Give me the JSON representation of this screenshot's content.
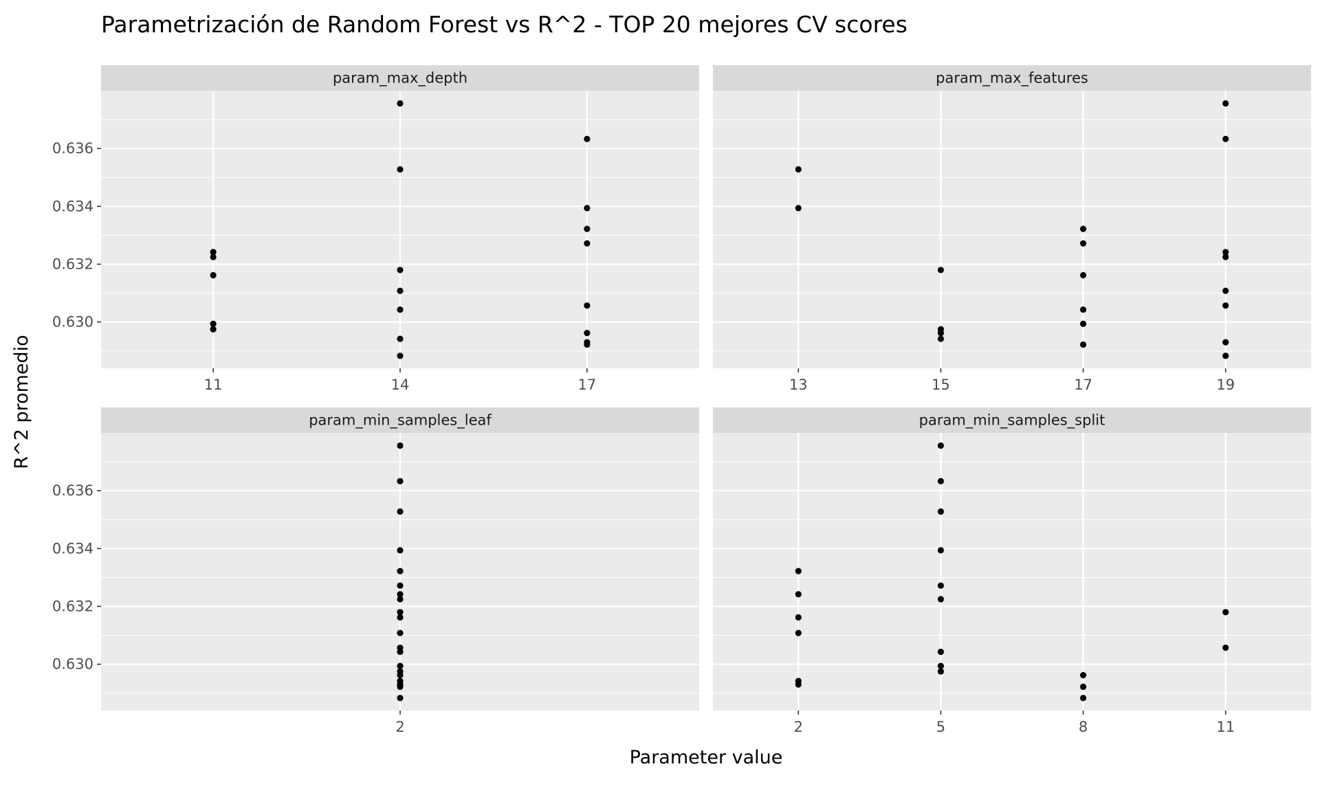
{
  "chart_data": {
    "type": "scatter",
    "title": "Parametrización de Random Forest vs R^2 - TOP 20 mejores CV scores",
    "xlabel": "Parameter value",
    "ylabel": "R^2 promedio",
    "ylim": [
      0.6284,
      0.638
    ],
    "y_ticks": [
      "0.630",
      "0.632",
      "0.634",
      "0.636"
    ],
    "grid": true,
    "point_color": "#000000",
    "panels": [
      {
        "label": "param_max_depth",
        "x_ticks": [
          "11",
          "14",
          "17"
        ],
        "points": [
          {
            "x": "11",
            "y": 0.63242
          },
          {
            "x": "11",
            "y": 0.63225
          },
          {
            "x": "11",
            "y": 0.63162
          },
          {
            "x": "11",
            "y": 0.62994
          },
          {
            "x": "11",
            "y": 0.62975
          },
          {
            "x": "14",
            "y": 0.63756
          },
          {
            "x": "14",
            "y": 0.63528
          },
          {
            "x": "14",
            "y": 0.6318
          },
          {
            "x": "14",
            "y": 0.63108
          },
          {
            "x": "14",
            "y": 0.63043
          },
          {
            "x": "14",
            "y": 0.62942
          },
          {
            "x": "14",
            "y": 0.62883
          },
          {
            "x": "17",
            "y": 0.63633
          },
          {
            "x": "17",
            "y": 0.63394
          },
          {
            "x": "17",
            "y": 0.63322
          },
          {
            "x": "17",
            "y": 0.63272
          },
          {
            "x": "17",
            "y": 0.63057
          },
          {
            "x": "17",
            "y": 0.62962
          },
          {
            "x": "17",
            "y": 0.6293
          },
          {
            "x": "17",
            "y": 0.62922
          }
        ]
      },
      {
        "label": "param_max_features",
        "x_ticks": [
          "13",
          "15",
          "17",
          "19"
        ],
        "points": [
          {
            "x": "13",
            "y": 0.63528
          },
          {
            "x": "13",
            "y": 0.63394
          },
          {
            "x": "15",
            "y": 0.6318
          },
          {
            "x": "15",
            "y": 0.62975
          },
          {
            "x": "15",
            "y": 0.62962
          },
          {
            "x": "15",
            "y": 0.62942
          },
          {
            "x": "17",
            "y": 0.63322
          },
          {
            "x": "17",
            "y": 0.63272
          },
          {
            "x": "17",
            "y": 0.63162
          },
          {
            "x": "17",
            "y": 0.63043
          },
          {
            "x": "17",
            "y": 0.62994
          },
          {
            "x": "17",
            "y": 0.62922
          },
          {
            "x": "19",
            "y": 0.63756
          },
          {
            "x": "19",
            "y": 0.63633
          },
          {
            "x": "19",
            "y": 0.63242
          },
          {
            "x": "19",
            "y": 0.63225
          },
          {
            "x": "19",
            "y": 0.63108
          },
          {
            "x": "19",
            "y": 0.63057
          },
          {
            "x": "19",
            "y": 0.6293
          },
          {
            "x": "19",
            "y": 0.62883
          }
        ]
      },
      {
        "label": "param_min_samples_leaf",
        "x_ticks": [
          "2"
        ],
        "points": [
          {
            "x": "2",
            "y": 0.63756
          },
          {
            "x": "2",
            "y": 0.63633
          },
          {
            "x": "2",
            "y": 0.63528
          },
          {
            "x": "2",
            "y": 0.63394
          },
          {
            "x": "2",
            "y": 0.63322
          },
          {
            "x": "2",
            "y": 0.63272
          },
          {
            "x": "2",
            "y": 0.63242
          },
          {
            "x": "2",
            "y": 0.63225
          },
          {
            "x": "2",
            "y": 0.6318
          },
          {
            "x": "2",
            "y": 0.63162
          },
          {
            "x": "2",
            "y": 0.63108
          },
          {
            "x": "2",
            "y": 0.63057
          },
          {
            "x": "2",
            "y": 0.63043
          },
          {
            "x": "2",
            "y": 0.62994
          },
          {
            "x": "2",
            "y": 0.62975
          },
          {
            "x": "2",
            "y": 0.62962
          },
          {
            "x": "2",
            "y": 0.62942
          },
          {
            "x": "2",
            "y": 0.6293
          },
          {
            "x": "2",
            "y": 0.62922
          },
          {
            "x": "2",
            "y": 0.62883
          }
        ]
      },
      {
        "label": "param_min_samples_split",
        "x_ticks": [
          "2",
          "5",
          "8",
          "11"
        ],
        "points": [
          {
            "x": "2",
            "y": 0.63322
          },
          {
            "x": "2",
            "y": 0.63242
          },
          {
            "x": "2",
            "y": 0.63162
          },
          {
            "x": "2",
            "y": 0.63108
          },
          {
            "x": "2",
            "y": 0.62942
          },
          {
            "x": "2",
            "y": 0.6293
          },
          {
            "x": "5",
            "y": 0.63756
          },
          {
            "x": "5",
            "y": 0.63633
          },
          {
            "x": "5",
            "y": 0.63528
          },
          {
            "x": "5",
            "y": 0.63394
          },
          {
            "x": "5",
            "y": 0.63272
          },
          {
            "x": "5",
            "y": 0.63225
          },
          {
            "x": "5",
            "y": 0.63043
          },
          {
            "x": "5",
            "y": 0.62994
          },
          {
            "x": "5",
            "y": 0.62975
          },
          {
            "x": "8",
            "y": 0.62962
          },
          {
            "x": "8",
            "y": 0.62922
          },
          {
            "x": "8",
            "y": 0.62883
          },
          {
            "x": "11",
            "y": 0.6318
          },
          {
            "x": "11",
            "y": 0.63057
          }
        ]
      }
    ]
  }
}
